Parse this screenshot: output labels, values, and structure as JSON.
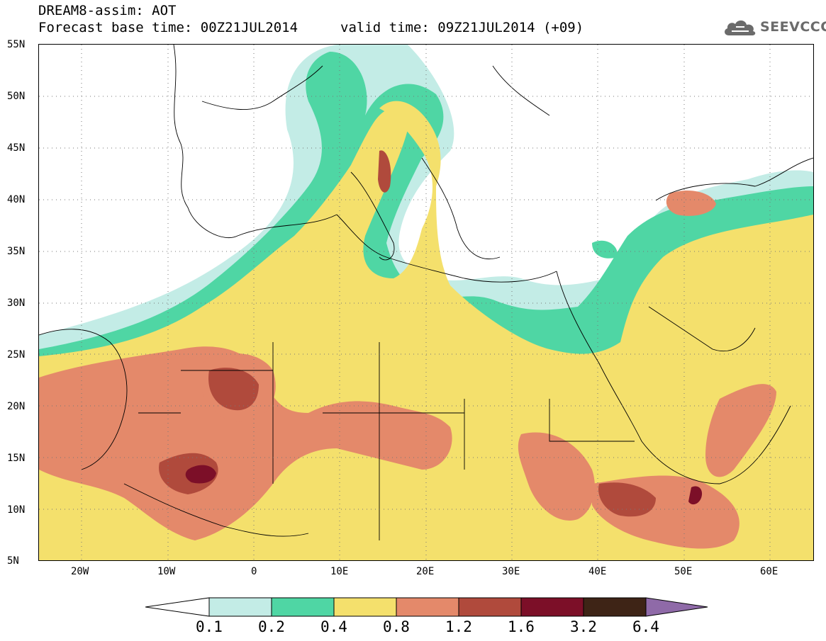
{
  "header": {
    "title_line1": "DREAM8-assim: AOT",
    "title_line2": "Forecast base time: 00Z21JUL2014",
    "valid_time": "valid time: 09Z21JUL2014 (+09)"
  },
  "logo": {
    "text": "SEEVCCC",
    "icon": "cloud-icon"
  },
  "map": {
    "projection": "lat-lon",
    "lat_range": [
      5,
      55
    ],
    "lon_range": [
      -25,
      65
    ],
    "lat_labels": [
      "55N",
      "50N",
      "45N",
      "40N",
      "35N",
      "30N",
      "25N",
      "20N",
      "15N",
      "10N",
      "5N"
    ],
    "lon_labels": [
      "20W",
      "10W",
      "0",
      "10E",
      "20E",
      "30E",
      "40E",
      "50E",
      "60E"
    ],
    "grid": "dotted"
  },
  "legend": {
    "labels": [
      "0.1",
      "0.2",
      "0.4",
      "0.8",
      "1.2",
      "1.6",
      "3.2",
      "6.4"
    ],
    "colors": [
      "#ffffff",
      "#c3ece6",
      "#4fd6a4",
      "#f4e06c",
      "#e4896a",
      "#b04a3c",
      "#7c0f28",
      "#3e2416",
      "#8f6aa8"
    ]
  }
}
